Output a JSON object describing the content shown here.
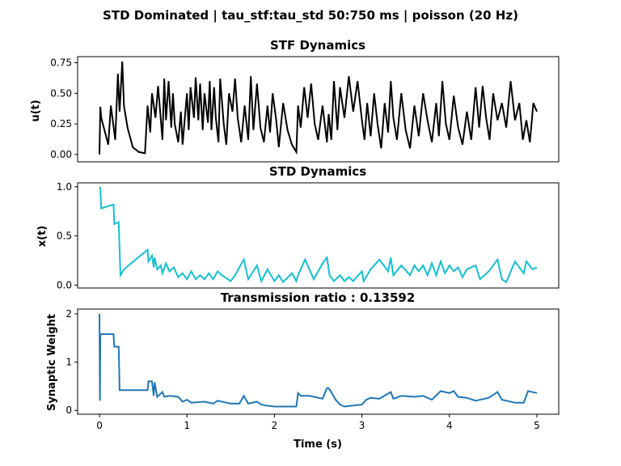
{
  "chart_data": {
    "type": "line",
    "title": "STD Dominated | tau_stf:tau_std 50:750 ms | poisson (20 Hz)",
    "xlabel": "Time (s)",
    "xlim": [
      -0.25,
      5.25
    ],
    "xticks": [
      "0",
      "1",
      "2",
      "3",
      "4",
      "5"
    ],
    "panels": [
      {
        "title": "STF Dynamics",
        "ylabel": "u(t)",
        "ylim": [
          -0.06,
          0.8
        ],
        "yticks": [
          "0.00",
          "0.25",
          "0.50",
          "0.75"
        ],
        "color": "#000000",
        "x": [
          0.0,
          0.01,
          0.02,
          0.1,
          0.13,
          0.18,
          0.21,
          0.23,
          0.26,
          0.28,
          0.32,
          0.38,
          0.45,
          0.52,
          0.55,
          0.58,
          0.6,
          0.64,
          0.67,
          0.72,
          0.74,
          0.76,
          0.79,
          0.82,
          0.84,
          0.86,
          0.9,
          0.93,
          0.95,
          0.97,
          1.0,
          1.02,
          1.04,
          1.08,
          1.1,
          1.13,
          1.15,
          1.18,
          1.2,
          1.24,
          1.26,
          1.28,
          1.31,
          1.33,
          1.36,
          1.38,
          1.42,
          1.45,
          1.48,
          1.52,
          1.55,
          1.58,
          1.62,
          1.66,
          1.7,
          1.73,
          1.76,
          1.8,
          1.84,
          1.88,
          1.92,
          1.95,
          1.98,
          2.02,
          2.05,
          2.1,
          2.15,
          2.2,
          2.25,
          2.27,
          2.3,
          2.34,
          2.38,
          2.42,
          2.46,
          2.5,
          2.55,
          2.6,
          2.62,
          2.65,
          2.68,
          2.72,
          2.75,
          2.8,
          2.85,
          2.9,
          2.95,
          3.0,
          3.03,
          3.06,
          3.1,
          3.14,
          3.18,
          3.22,
          3.26,
          3.3,
          3.33,
          3.36,
          3.4,
          3.45,
          3.5,
          3.55,
          3.6,
          3.65,
          3.7,
          3.75,
          3.8,
          3.85,
          3.88,
          3.92,
          3.96,
          4.0,
          4.05,
          4.1,
          4.15,
          4.2,
          4.25,
          4.3,
          4.34,
          4.38,
          4.42,
          4.46,
          4.5,
          4.55,
          4.6,
          4.65,
          4.7,
          4.75,
          4.8,
          4.84,
          4.88,
          4.92,
          4.96,
          5.0
        ],
        "values": [
          0.0,
          0.39,
          0.3,
          0.08,
          0.4,
          0.12,
          0.66,
          0.35,
          0.76,
          0.4,
          0.22,
          0.06,
          0.02,
          0.01,
          0.4,
          0.18,
          0.5,
          0.3,
          0.56,
          0.12,
          0.62,
          0.28,
          0.6,
          0.22,
          0.5,
          0.25,
          0.1,
          0.35,
          0.08,
          0.25,
          0.5,
          0.2,
          0.55,
          0.3,
          0.63,
          0.28,
          0.58,
          0.2,
          0.5,
          0.26,
          0.6,
          0.2,
          0.55,
          0.3,
          0.1,
          0.62,
          0.25,
          0.08,
          0.5,
          0.35,
          0.62,
          0.3,
          0.1,
          0.4,
          0.12,
          0.64,
          0.2,
          0.58,
          0.22,
          0.1,
          0.4,
          0.18,
          0.5,
          0.28,
          0.06,
          0.42,
          0.2,
          0.08,
          0.02,
          0.4,
          0.22,
          0.55,
          0.3,
          0.58,
          0.25,
          0.12,
          0.4,
          0.1,
          0.33,
          0.12,
          0.6,
          0.2,
          0.55,
          0.3,
          0.64,
          0.35,
          0.6,
          0.28,
          0.12,
          0.42,
          0.15,
          0.5,
          0.24,
          0.05,
          0.42,
          0.18,
          0.6,
          0.3,
          0.12,
          0.5,
          0.2,
          0.05,
          0.4,
          0.15,
          0.5,
          0.28,
          0.1,
          0.42,
          0.15,
          0.6,
          0.25,
          0.12,
          0.48,
          0.22,
          0.08,
          0.35,
          0.12,
          0.55,
          0.22,
          0.56,
          0.3,
          0.12,
          0.5,
          0.28,
          0.42,
          0.22,
          0.6,
          0.28,
          0.42,
          0.12,
          0.28,
          0.1,
          0.42,
          0.35
        ]
      },
      {
        "title": "STD Dynamics",
        "ylabel": "x(t)",
        "ylim": [
          -0.03,
          1.04
        ],
        "yticks": [
          "0.0",
          "0.5",
          "1.0"
        ],
        "color": "#17becf",
        "x": [
          0.0,
          0.01,
          0.02,
          0.16,
          0.17,
          0.22,
          0.23,
          0.24,
          0.28,
          0.55,
          0.56,
          0.6,
          0.62,
          0.63,
          0.66,
          0.7,
          0.72,
          0.76,
          0.8,
          0.85,
          0.9,
          0.95,
          1.0,
          1.05,
          1.1,
          1.15,
          1.2,
          1.25,
          1.3,
          1.35,
          1.4,
          1.5,
          1.55,
          1.65,
          1.7,
          1.8,
          1.85,
          1.92,
          2.0,
          2.05,
          2.1,
          2.2,
          2.25,
          2.27,
          2.35,
          2.45,
          2.55,
          2.6,
          2.63,
          2.68,
          2.75,
          2.8,
          2.85,
          2.9,
          3.0,
          3.02,
          3.1,
          3.2,
          3.3,
          3.33,
          3.36,
          3.45,
          3.55,
          3.6,
          3.65,
          3.7,
          3.75,
          3.8,
          3.85,
          3.9,
          3.95,
          4.0,
          4.05,
          4.1,
          4.15,
          4.2,
          4.3,
          4.35,
          4.45,
          4.55,
          4.6,
          4.65,
          4.75,
          4.85,
          4.88,
          4.95,
          5.0
        ],
        "values": [
          1.0,
          0.98,
          0.78,
          0.82,
          0.62,
          0.64,
          0.36,
          0.1,
          0.16,
          0.36,
          0.24,
          0.3,
          0.18,
          0.28,
          0.16,
          0.2,
          0.12,
          0.22,
          0.14,
          0.18,
          0.08,
          0.12,
          0.06,
          0.14,
          0.06,
          0.1,
          0.06,
          0.12,
          0.06,
          0.14,
          0.1,
          0.04,
          0.1,
          0.26,
          0.06,
          0.2,
          0.04,
          0.16,
          0.04,
          0.1,
          0.03,
          0.12,
          0.04,
          0.1,
          0.26,
          0.06,
          0.22,
          0.28,
          0.1,
          0.04,
          0.1,
          0.04,
          0.08,
          0.04,
          0.14,
          0.04,
          0.16,
          0.26,
          0.14,
          0.28,
          0.1,
          0.2,
          0.1,
          0.2,
          0.14,
          0.2,
          0.1,
          0.22,
          0.1,
          0.24,
          0.12,
          0.2,
          0.14,
          0.18,
          0.08,
          0.16,
          0.2,
          0.06,
          0.14,
          0.26,
          0.06,
          0.03,
          0.24,
          0.12,
          0.24,
          0.16,
          0.18
        ]
      },
      {
        "title": "Transmission ratio : 0.13592",
        "ylabel": "Synaptic Weight",
        "ylim": [
          -0.08,
          2.1
        ],
        "yticks": [
          "0",
          "1",
          "2"
        ],
        "color": "#1f77b4",
        "x": [
          0.0,
          0.005,
          0.01,
          0.015,
          0.16,
          0.17,
          0.22,
          0.23,
          0.28,
          0.55,
          0.56,
          0.6,
          0.62,
          0.63,
          0.66,
          0.72,
          0.74,
          0.8,
          0.9,
          0.95,
          1.0,
          1.05,
          1.2,
          1.3,
          1.35,
          1.45,
          1.5,
          1.6,
          1.65,
          1.7,
          1.8,
          1.85,
          1.9,
          2.0,
          2.05,
          2.25,
          2.27,
          2.3,
          2.4,
          2.55,
          2.6,
          2.62,
          2.65,
          2.7,
          2.75,
          2.8,
          3.0,
          3.05,
          3.1,
          3.2,
          3.33,
          3.36,
          3.45,
          3.6,
          3.7,
          3.8,
          3.9,
          4.0,
          4.05,
          4.1,
          4.2,
          4.3,
          4.45,
          4.55,
          4.6,
          4.75,
          4.85,
          4.9,
          5.0
        ],
        "values": [
          2.0,
          0.2,
          1.58,
          1.58,
          1.58,
          1.32,
          1.32,
          0.42,
          0.42,
          0.42,
          0.6,
          0.6,
          0.3,
          0.58,
          0.28,
          0.38,
          0.28,
          0.3,
          0.28,
          0.18,
          0.22,
          0.16,
          0.18,
          0.14,
          0.2,
          0.16,
          0.14,
          0.14,
          0.3,
          0.14,
          0.18,
          0.12,
          0.1,
          0.08,
          0.08,
          0.08,
          0.36,
          0.3,
          0.3,
          0.24,
          0.46,
          0.46,
          0.38,
          0.22,
          0.12,
          0.08,
          0.12,
          0.22,
          0.26,
          0.24,
          0.38,
          0.24,
          0.3,
          0.28,
          0.3,
          0.22,
          0.4,
          0.36,
          0.4,
          0.28,
          0.26,
          0.2,
          0.26,
          0.38,
          0.22,
          0.16,
          0.16,
          0.4,
          0.36
        ]
      }
    ]
  }
}
